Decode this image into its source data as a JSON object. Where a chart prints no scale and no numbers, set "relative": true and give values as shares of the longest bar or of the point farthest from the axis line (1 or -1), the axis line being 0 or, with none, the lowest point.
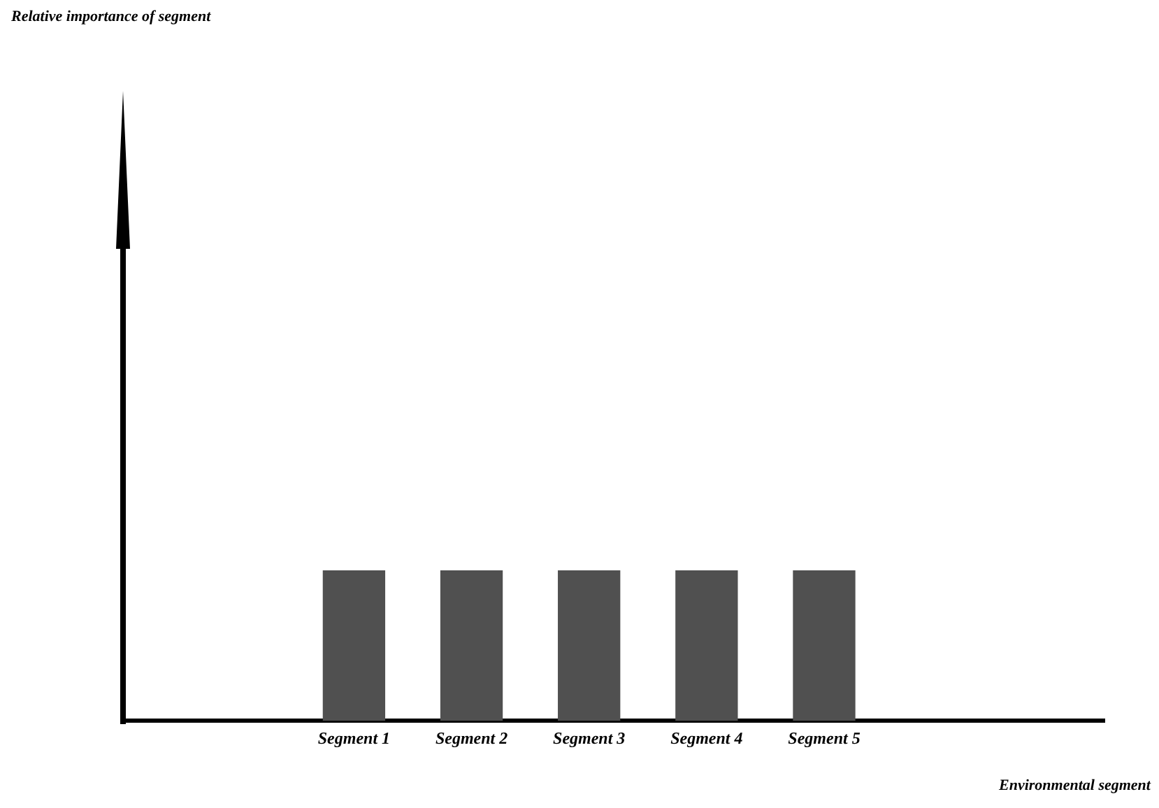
{
  "chart_data": {
    "type": "bar",
    "relative": true,
    "annotations": [
      "Relative importance of segment",
      "Environmental segment"
    ],
    "categories": [
      "Segment 1",
      "Segment 2",
      "Segment 3",
      "Segment 4",
      "Segment 5"
    ],
    "values": [
      1,
      1,
      1,
      1,
      1
    ],
    "color": "#505050",
    "grid": false,
    "legend": false
  }
}
